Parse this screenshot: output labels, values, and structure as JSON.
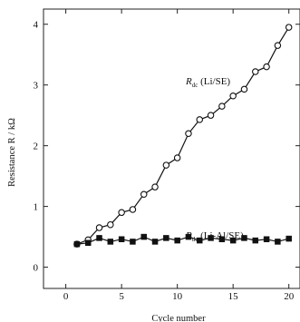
{
  "chart_data": {
    "type": "line",
    "xlabel": "Cycle number",
    "ylabel": "Resistance R / kΩ",
    "xlim": [
      -2,
      21
    ],
    "ylim": [
      -0.35,
      4.25
    ],
    "xticks": [
      0,
      5,
      10,
      15,
      20
    ],
    "yticks": [
      0,
      1,
      2,
      3,
      4
    ],
    "grid": false,
    "series": [
      {
        "name": "Rdc (Li/SE)",
        "name_main": "R",
        "name_sub": "dc",
        "name_rest": " (Li/SE)",
        "marker": "circle",
        "x": [
          1,
          2,
          3,
          4,
          5,
          6,
          7,
          8,
          9,
          10,
          11,
          12,
          13,
          14,
          15,
          16,
          17,
          18,
          19,
          20
        ],
        "values": [
          0.38,
          0.45,
          0.65,
          0.7,
          0.9,
          0.95,
          1.2,
          1.32,
          1.68,
          1.8,
          2.2,
          2.43,
          2.5,
          2.65,
          2.82,
          2.93,
          3.22,
          3.3,
          3.65,
          3.95
        ]
      },
      {
        "name": "Rdc (Li-Al/SE)",
        "name_main": "R",
        "name_sub": "dc",
        "name_rest": " (Li-Al/SE)",
        "marker": "square",
        "x": [
          1,
          2,
          3,
          4,
          5,
          6,
          7,
          8,
          9,
          10,
          11,
          12,
          13,
          14,
          15,
          16,
          17,
          18,
          19,
          20
        ],
        "values": [
          0.38,
          0.4,
          0.48,
          0.42,
          0.46,
          0.42,
          0.5,
          0.42,
          0.48,
          0.44,
          0.5,
          0.44,
          0.48,
          0.46,
          0.44,
          0.48,
          0.44,
          0.46,
          0.42,
          0.47
        ]
      }
    ]
  }
}
